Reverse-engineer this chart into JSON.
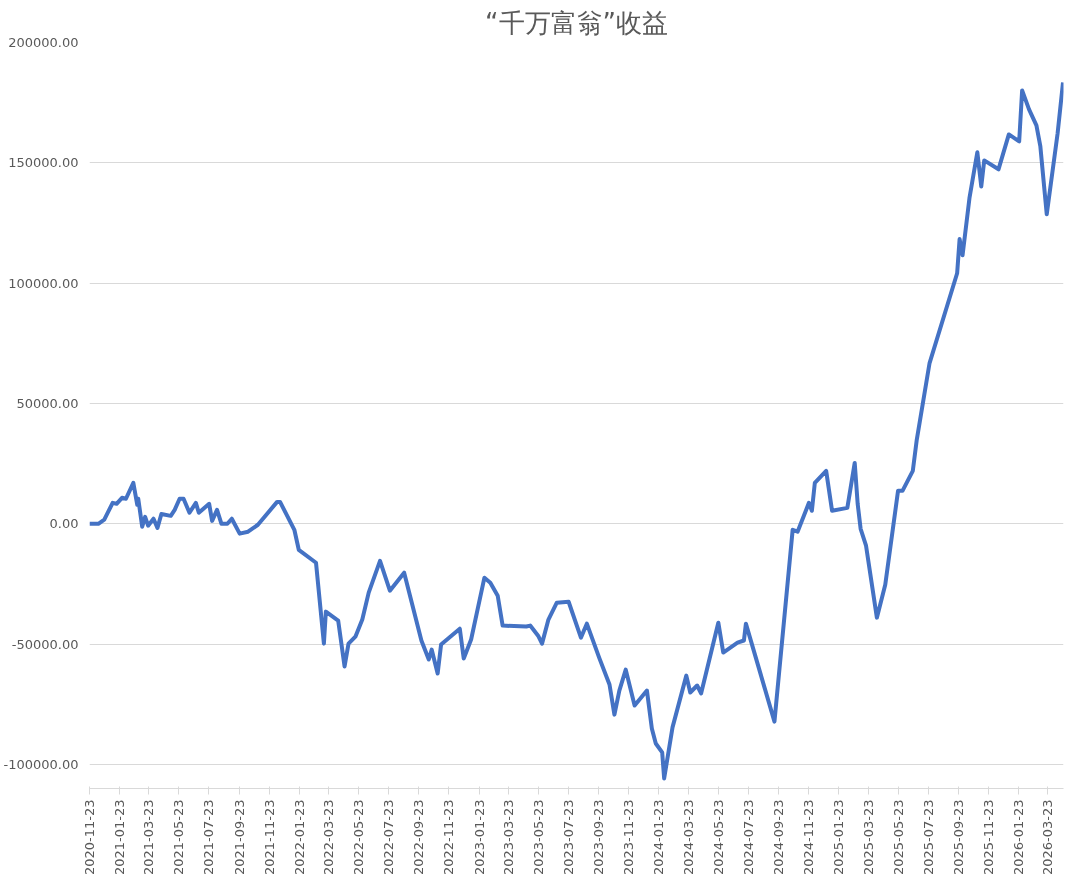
{
  "chart_data": {
    "type": "line",
    "title": "“千万富翁”收益",
    "x": [
      "2020-11-23",
      "2020-12-11",
      "2020-12-23",
      "2021-01-09",
      "2021-01-17",
      "2021-01-28",
      "2021-02-05",
      "2021-02-20",
      "2021-02-28",
      "2021-03-02",
      "2021-03-10",
      "2021-03-16",
      "2021-03-22",
      "2021-04-02",
      "2021-04-10",
      "2021-04-18",
      "2021-05-07",
      "2021-05-15",
      "2021-05-25",
      "2021-06-02",
      "2021-06-14",
      "2021-06-27",
      "2021-07-03",
      "2021-07-24",
      "2021-07-30",
      "2021-08-09",
      "2021-08-18",
      "2021-08-30",
      "2021-09-08",
      "2021-09-24",
      "2021-10-11",
      "2021-10-31",
      "2021-12-09",
      "2021-12-15",
      "2022-01-13",
      "2022-01-22",
      "2022-02-26",
      "2022-03-14",
      "2022-03-18",
      "2022-04-12",
      "2022-04-25",
      "2022-05-03",
      "2022-05-17",
      "2022-05-31",
      "2022-06-13",
      "2022-07-06",
      "2022-07-26",
      "2022-08-24",
      "2022-09-28",
      "2022-10-13",
      "2022-10-19",
      "2022-10-31",
      "2022-11-07",
      "2022-12-15",
      "2022-12-23",
      "2023-01-07",
      "2023-02-03",
      "2023-02-15",
      "2023-03-02",
      "2023-03-12",
      "2023-04-29",
      "2023-05-07",
      "2023-05-23",
      "2023-05-31",
      "2023-06-13",
      "2023-06-30",
      "2023-07-24",
      "2023-08-18",
      "2023-08-30",
      "2023-09-24",
      "2023-10-15",
      "2023-10-25",
      "2023-11-04",
      "2023-11-17",
      "2023-12-05",
      "2023-12-30",
      "2024-01-09",
      "2024-01-17",
      "2024-01-30",
      "2024-02-03",
      "2024-02-20",
      "2024-03-19",
      "2024-03-27",
      "2024-04-10",
      "2024-04-18",
      "2024-05-23",
      "2024-06-02",
      "2024-07-01",
      "2024-07-14",
      "2024-07-18",
      "2024-09-14",
      "2024-10-21",
      "2024-10-31",
      "2024-11-23",
      "2024-11-29",
      "2024-12-05",
      "2024-12-28",
      "2025-01-09",
      "2025-02-09",
      "2025-02-24",
      "2025-03-02",
      "2025-03-08",
      "2025-03-19",
      "2025-04-10",
      "2025-04-27",
      "2025-05-23",
      "2025-06-01",
      "2025-06-22",
      "2025-06-30",
      "2025-07-26",
      "2025-09-20",
      "2025-09-25",
      "2025-10-01",
      "2025-10-15",
      "2025-10-31",
      "2025-11-08",
      "2025-11-14",
      "2025-12-13",
      "2026-01-03",
      "2026-01-24",
      "2026-01-30",
      "2026-02-13",
      "2026-02-28",
      "2026-03-08",
      "2026-03-21",
      "2026-04-12",
      "2026-04-23"
    ],
    "series": [
      {
        "color": "#4472c4",
        "values": [
          0,
          0,
          1700,
          8700,
          8300,
          10800,
          10400,
          17000,
          7900,
          10400,
          -1200,
          2900,
          -800,
          2100,
          -1700,
          4100,
          3300,
          5800,
          10400,
          10400,
          4600,
          8700,
          4600,
          8300,
          1200,
          5800,
          0,
          0,
          2100,
          -4100,
          -3300,
          -400,
          9100,
          9100,
          -2500,
          -10800,
          -16200,
          -49800,
          -36500,
          -40200,
          -59300,
          -49800,
          -46900,
          -39800,
          -28600,
          -15400,
          -27800,
          -20300,
          -48500,
          -56400,
          -52300,
          -62200,
          -50200,
          -43600,
          -56000,
          -48100,
          -22400,
          -24500,
          -29900,
          -42300,
          -42700,
          -42300,
          -46500,
          -49800,
          -39800,
          -32800,
          -32400,
          -47300,
          -41500,
          -55600,
          -66800,
          -79300,
          -69300,
          -60600,
          -75500,
          -69300,
          -85100,
          -91300,
          -95000,
          -105800,
          -84600,
          -63100,
          -70100,
          -67200,
          -70500,
          -41100,
          -53500,
          -49400,
          -48500,
          -41500,
          -82200,
          -2500,
          -3300,
          8700,
          5400,
          17000,
          22000,
          5400,
          6600,
          25300,
          8300,
          -2100,
          -9100,
          -39000,
          -25300,
          13700,
          13700,
          22000,
          34900,
          66800,
          104100,
          118300,
          111600,
          135300,
          154400,
          140200,
          151000,
          147300,
          161800,
          158900,
          180100,
          172200,
          165600,
          156800,
          128600,
          162200,
          183400
        ]
      }
    ],
    "xlim": [
      "2020-11-23",
      "2026-04-24"
    ],
    "xticks": [
      "2020-11-23",
      "2021-01-23",
      "2021-03-23",
      "2021-05-23",
      "2021-07-23",
      "2021-09-23",
      "2021-11-23",
      "2022-01-23",
      "2022-03-23",
      "2022-05-23",
      "2022-07-23",
      "2022-09-23",
      "2022-11-23",
      "2023-01-23",
      "2023-03-23",
      "2023-05-23",
      "2023-07-23",
      "2023-09-23",
      "2023-11-23",
      "2024-01-23",
      "2024-03-23",
      "2024-05-23",
      "2024-07-23",
      "2024-09-23",
      "2024-11-23",
      "2025-01-23",
      "2025-03-23",
      "2025-05-23",
      "2025-07-23",
      "2025-09-23",
      "2025-11-23",
      "2026-01-23",
      "2026-03-23"
    ],
    "ylim": [
      -110000,
      200000
    ],
    "yticks": [
      {
        "value": -100000,
        "label": "-100000.00"
      },
      {
        "value": -50000,
        "label": "-50000.00"
      },
      {
        "value": 0,
        "label": "0.00"
      },
      {
        "value": 50000,
        "label": "50000.00"
      },
      {
        "value": 100000,
        "label": "100000.00"
      },
      {
        "value": 150000,
        "label": "150000.00"
      },
      {
        "value": 200000,
        "label": "200000.00"
      }
    ],
    "grid": "y",
    "marker": "none",
    "line_style": "solid"
  }
}
